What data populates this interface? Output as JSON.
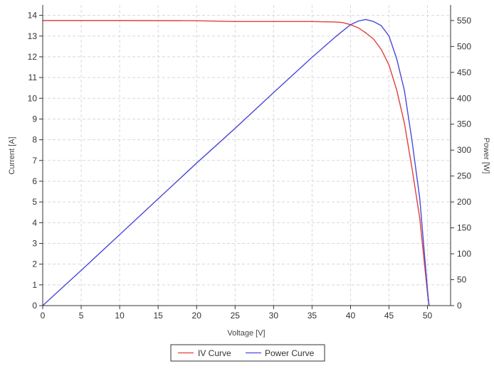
{
  "chart_data": {
    "type": "line",
    "xlabel": "Voltage [V]",
    "ylabel": "Current [A]",
    "y2label": "Power [W]",
    "xlim": [
      0,
      53
    ],
    "ylim": [
      0,
      14.5
    ],
    "y2lim": [
      0,
      580
    ],
    "x_ticks": [
      0,
      5,
      10,
      15,
      20,
      25,
      30,
      35,
      40,
      45,
      50
    ],
    "y_ticks": [
      0,
      1,
      2,
      3,
      4,
      5,
      6,
      7,
      8,
      9,
      10,
      11,
      12,
      13,
      14
    ],
    "y2_ticks": [
      0,
      50,
      100,
      150,
      200,
      250,
      300,
      350,
      400,
      450,
      500,
      550
    ],
    "grid": true,
    "legend_position": "bottom",
    "series": [
      {
        "name": "IV Curve",
        "axis": "left",
        "color": "#e04040",
        "points": [
          [
            0,
            13.75
          ],
          [
            10,
            13.75
          ],
          [
            20,
            13.74
          ],
          [
            25,
            13.7
          ],
          [
            30,
            13.7
          ],
          [
            35,
            13.7
          ],
          [
            38,
            13.68
          ],
          [
            39,
            13.65
          ],
          [
            40,
            13.55
          ],
          [
            41,
            13.4
          ],
          [
            42,
            13.15
          ],
          [
            43,
            12.85
          ],
          [
            44,
            12.35
          ],
          [
            45,
            11.6
          ],
          [
            46,
            10.4
          ],
          [
            47,
            8.8
          ],
          [
            48,
            6.6
          ],
          [
            49,
            4.2
          ],
          [
            50,
            0.6
          ],
          [
            50.2,
            0
          ]
        ]
      },
      {
        "name": "Power Curve",
        "axis": "right",
        "color": "#4a4ad8",
        "points": [
          [
            0,
            0
          ],
          [
            5,
            68
          ],
          [
            10,
            137
          ],
          [
            15,
            206
          ],
          [
            20,
            275
          ],
          [
            25,
            342
          ],
          [
            30,
            411
          ],
          [
            35,
            479
          ],
          [
            38,
            518
          ],
          [
            40,
            542
          ],
          [
            41,
            549
          ],
          [
            42,
            552
          ],
          [
            43,
            548
          ],
          [
            44,
            540
          ],
          [
            45,
            520
          ],
          [
            46,
            476
          ],
          [
            47,
            415
          ],
          [
            48,
            317
          ],
          [
            49,
            206
          ],
          [
            50,
            30
          ],
          [
            50.2,
            0
          ]
        ]
      }
    ]
  }
}
